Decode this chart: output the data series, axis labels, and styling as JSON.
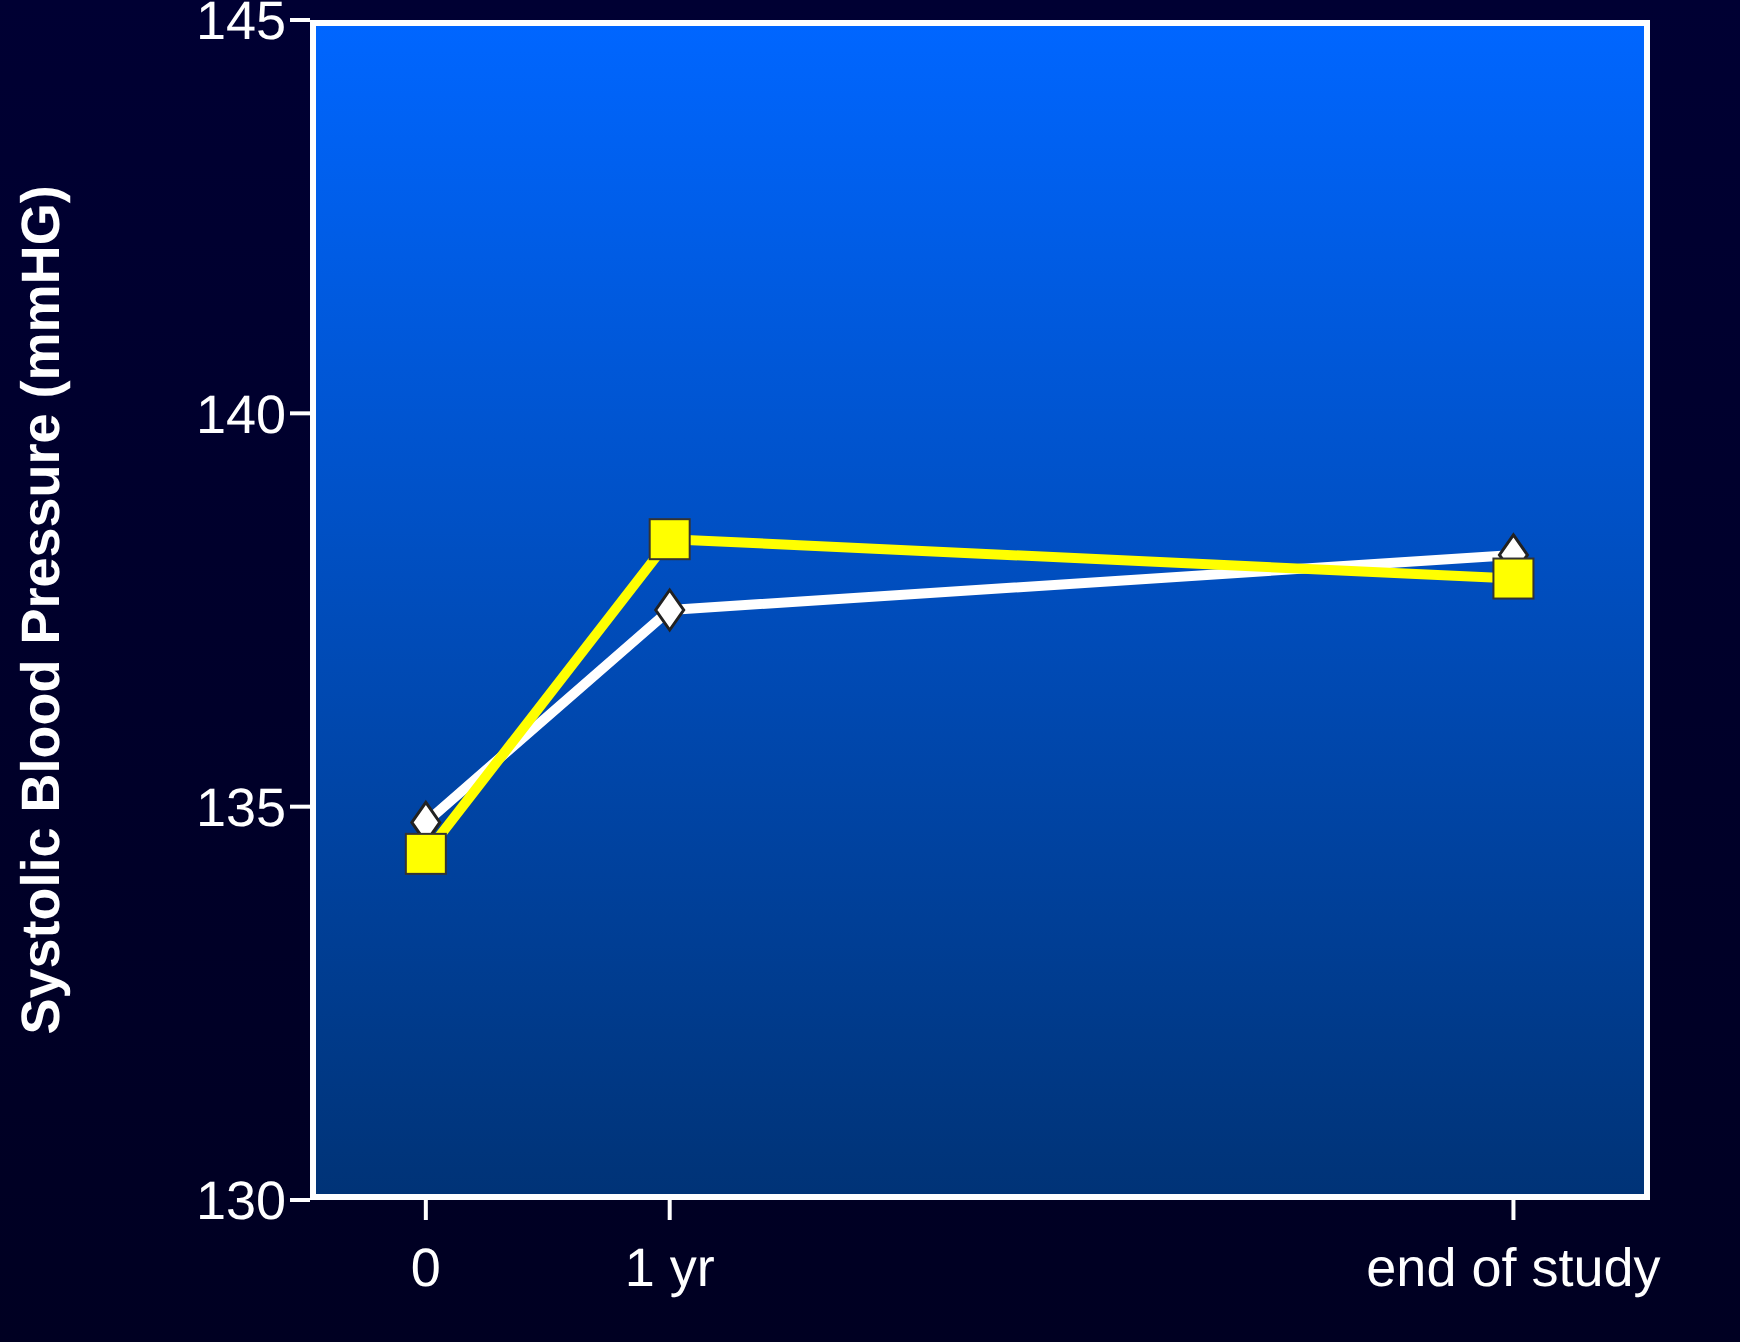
{
  "chart_data": {
    "type": "line",
    "ylabel": "Systolic Blood Pressure (mmHG)",
    "x": [
      0,
      1,
      4.46
    ],
    "xlim": [
      -0.475,
      5.02
    ],
    "xticks": [
      {
        "value": 0,
        "label": "0"
      },
      {
        "value": 1,
        "label": "1 yr"
      },
      {
        "value": 4.46,
        "label": "end of study"
      }
    ],
    "ylim": [
      130,
      145
    ],
    "yticks": [
      130,
      135,
      140,
      145
    ],
    "grid": false,
    "series": [
      {
        "color": "#ffffff",
        "marker": "diamond",
        "values": [
          134.8,
          137.5,
          138.2
        ]
      },
      {
        "color": "#ffff00",
        "marker": "square",
        "values": [
          134.4,
          138.4,
          137.9
        ]
      }
    ]
  }
}
